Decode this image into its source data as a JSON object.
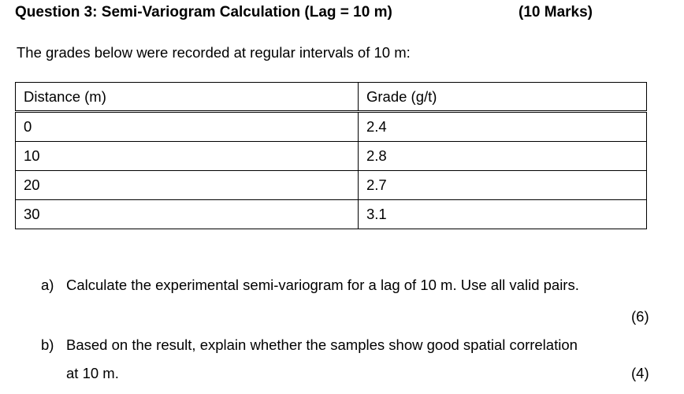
{
  "heading": {
    "title": "Question 3: Semi-Variogram Calculation (Lag = 10 m)",
    "marks": "(10 Marks)"
  },
  "intro": "The grades below were recorded at regular intervals of 10 m:",
  "table": {
    "headers": [
      "Distance (m)",
      "Grade (g/t)"
    ],
    "rows": [
      [
        "0",
        "2.4"
      ],
      [
        "10",
        "2.8"
      ],
      [
        "20",
        "2.7"
      ],
      [
        "30",
        "3.1"
      ]
    ]
  },
  "questions": {
    "a": {
      "label": "a)",
      "text": "Calculate the experimental semi-variogram for a lag of 10 m. Use all valid pairs.",
      "marks": "(6)"
    },
    "b": {
      "label": "b)",
      "text": "Based on the result, explain whether the samples show good spatial correlation",
      "continuation": "at 10 m.",
      "marks": "(4)"
    }
  }
}
